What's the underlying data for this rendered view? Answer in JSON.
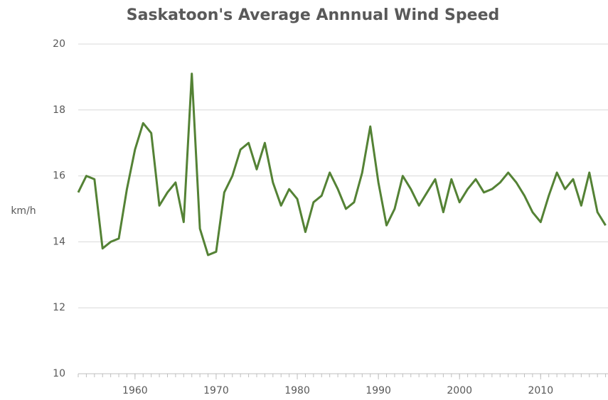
{
  "chart_data": {
    "type": "line",
    "title": "Saskatoon's Average Annnual Wind Speed",
    "y_label": "km/h",
    "x": [
      1953,
      1954,
      1955,
      1956,
      1957,
      1958,
      1959,
      1960,
      1961,
      1962,
      1963,
      1964,
      1965,
      1966,
      1967,
      1968,
      1969,
      1970,
      1971,
      1972,
      1973,
      1974,
      1975,
      1976,
      1977,
      1978,
      1979,
      1980,
      1981,
      1982,
      1983,
      1984,
      1985,
      1986,
      1987,
      1988,
      1989,
      1990,
      1991,
      1992,
      1993,
      1994,
      1995,
      1996,
      1997,
      1998,
      1999,
      2000,
      2001,
      2002,
      2003,
      2004,
      2005,
      2006,
      2007,
      2008,
      2009,
      2010,
      2011,
      2012,
      2013,
      2014,
      2015,
      2016,
      2017,
      2018
    ],
    "series": [
      {
        "name": "Average annual wind speed",
        "color": "#548235",
        "values": [
          15.5,
          16.0,
          15.9,
          13.8,
          14.0,
          14.1,
          15.6,
          16.8,
          17.6,
          17.3,
          15.1,
          15.5,
          15.8,
          14.6,
          19.1,
          14.4,
          13.6,
          13.7,
          15.5,
          16.0,
          16.8,
          17.0,
          16.2,
          17.0,
          15.8,
          15.1,
          15.6,
          15.3,
          14.3,
          15.2,
          15.4,
          16.1,
          15.6,
          15.0,
          15.2,
          16.1,
          17.5,
          15.8,
          14.5,
          15.0,
          16.0,
          15.6,
          15.1,
          15.5,
          15.9,
          14.9,
          15.9,
          15.2,
          15.6,
          15.9,
          15.5,
          15.6,
          15.8,
          16.1,
          15.8,
          15.4,
          14.9,
          14.6,
          15.4,
          16.1,
          15.6,
          15.9,
          15.1,
          16.1,
          14.9,
          14.5
        ]
      }
    ],
    "xlim": [
      1953,
      2018.3
    ],
    "xticks": [
      1960,
      1970,
      1980,
      1990,
      2000,
      2010
    ],
    "ylim": [
      10,
      20
    ],
    "yticks": [
      10,
      12,
      14,
      16,
      18,
      20
    ],
    "grid": true
  }
}
